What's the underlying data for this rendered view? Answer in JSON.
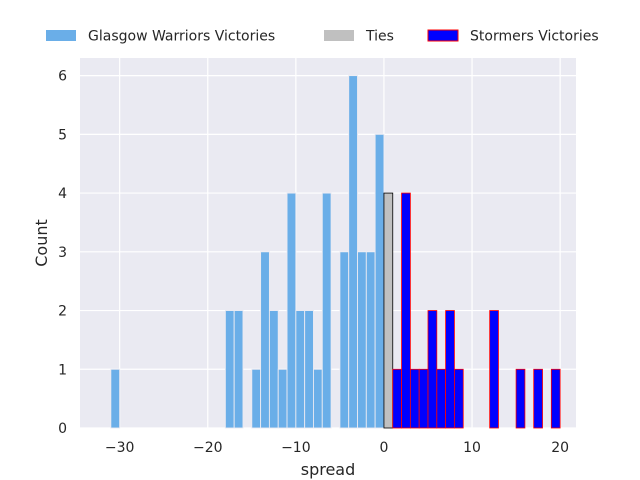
{
  "chart_data": {
    "type": "bar",
    "xlabel": "spread",
    "ylabel": "Count",
    "xlim": [
      -34.5,
      21.8
    ],
    "ylim": [
      0,
      6.3
    ],
    "xticks": [
      -30,
      -20,
      -10,
      0,
      10,
      20
    ],
    "xtick_labels": [
      "−30",
      "−20",
      "−10",
      "0",
      "10",
      "20"
    ],
    "yticks": [
      0,
      1,
      2,
      3,
      4,
      5,
      6
    ],
    "ytick_labels": [
      "0",
      "1",
      "2",
      "3",
      "4",
      "5",
      "6"
    ],
    "grid": true,
    "legend_position": "top",
    "bin_width": 1,
    "series": [
      {
        "name": "Glasgow Warriors Victories",
        "color": "#6aaee8",
        "edge": "none",
        "x": [
          -31,
          -18,
          -17,
          -15,
          -14,
          -13,
          -12,
          -11,
          -10,
          -9,
          -8,
          -7,
          -5,
          -4,
          -3,
          -2,
          -1
        ],
        "values": [
          1,
          2,
          2,
          1,
          3,
          2,
          1,
          4,
          2,
          2,
          1,
          4,
          3,
          6,
          3,
          3,
          5
        ]
      },
      {
        "name": "Ties",
        "color": "#c0c0c0",
        "edge": "#000000",
        "x": [
          0
        ],
        "values": [
          4
        ]
      },
      {
        "name": "Stormers Victories",
        "color": "#0000ff",
        "edge": "#ff0000",
        "x": [
          1,
          2,
          3,
          4,
          5,
          6,
          7,
          8,
          12,
          15,
          17,
          19
        ],
        "values": [
          1,
          4,
          1,
          1,
          2,
          1,
          2,
          1,
          2,
          1,
          1,
          1
        ]
      }
    ]
  }
}
